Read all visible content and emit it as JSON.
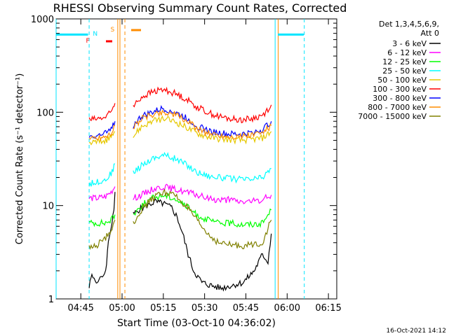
{
  "chart_data": {
    "type": "line",
    "title": "RHESSI Observing Summary Count Rates, Corrected",
    "xlabel": "Start Time (03-Oct-10 04:36:02)",
    "ylabel": "Corrected Count Rate (s⁻¹ detector⁻¹)",
    "x_unit": "minutes since 04:36:02",
    "xlim": [
      0,
      102
    ],
    "ylim": [
      1,
      1000
    ],
    "y_scale": "log",
    "grid": false,
    "x_ticks": [
      {
        "label": "04:45",
        "t": 8.97
      },
      {
        "label": "05:00",
        "t": 23.97
      },
      {
        "label": "05:15",
        "t": 38.97
      },
      {
        "label": "05:30",
        "t": 53.97
      },
      {
        "label": "05:45",
        "t": 68.97
      },
      {
        "label": "06:00",
        "t": 83.97
      },
      {
        "label": "06:15",
        "t": 98.97
      }
    ],
    "y_ticks": [
      {
        "label": "1",
        "v": 1
      },
      {
        "label": "10",
        "v": 10
      },
      {
        "label": "100",
        "v": 100
      },
      {
        "label": "1000",
        "v": 1000
      }
    ],
    "legend_header": [
      "Det 1,3,4,5,6,9,",
      "Att 0"
    ],
    "legend_position": "top-right outside",
    "series": [
      {
        "name": "3 - 6 keV",
        "color": "#000000",
        "points": [
          [
            12,
            1.4
          ],
          [
            13,
            1.8
          ],
          [
            15,
            1.5
          ],
          [
            16,
            1.6
          ],
          [
            18,
            2
          ],
          [
            19,
            4
          ],
          [
            20,
            6
          ],
          [
            21,
            9
          ],
          [
            21.4,
            14
          ]
        ],
        "points2": [
          [
            28,
            8
          ],
          [
            30,
            9
          ],
          [
            33,
            10
          ],
          [
            36,
            11
          ],
          [
            39,
            10.5
          ],
          [
            42,
            9.5
          ],
          [
            44,
            7.5
          ],
          [
            46,
            5
          ],
          [
            48,
            3
          ],
          [
            50,
            2
          ],
          [
            53,
            1.5
          ],
          [
            56,
            1.4
          ],
          [
            60,
            1.3
          ],
          [
            64,
            1.4
          ],
          [
            68,
            1.5
          ],
          [
            72,
            2
          ],
          [
            75,
            3
          ],
          [
            77,
            2.5
          ],
          [
            78.2,
            5
          ]
        ]
      },
      {
        "name": "6 - 12 keV",
        "color": "#ff00ff",
        "points": [
          [
            12,
            12
          ],
          [
            15,
            12
          ],
          [
            18,
            12.5
          ],
          [
            20,
            14
          ],
          [
            21.4,
            16
          ]
        ],
        "points2": [
          [
            28,
            12
          ],
          [
            31,
            13
          ],
          [
            35,
            15
          ],
          [
            39,
            16
          ],
          [
            43,
            15
          ],
          [
            47,
            14
          ],
          [
            51,
            13
          ],
          [
            55,
            12
          ],
          [
            59,
            11.5
          ],
          [
            63,
            11.5
          ],
          [
            67,
            11
          ],
          [
            71,
            11
          ],
          [
            75,
            11.5
          ],
          [
            78.2,
            13
          ]
        ]
      },
      {
        "name": "12 - 25 keV",
        "color": "#00ff00",
        "points": [
          [
            12,
            6.5
          ],
          [
            15,
            6.5
          ],
          [
            18,
            6.5
          ],
          [
            20,
            7
          ],
          [
            21.4,
            8
          ]
        ],
        "points2": [
          [
            28,
            8
          ],
          [
            31,
            10
          ],
          [
            35,
            12
          ],
          [
            39,
            13
          ],
          [
            43,
            12
          ],
          [
            47,
            10
          ],
          [
            51,
            8
          ],
          [
            55,
            7
          ],
          [
            59,
            6.5
          ],
          [
            63,
            6.5
          ],
          [
            67,
            6.3
          ],
          [
            71,
            6.3
          ],
          [
            75,
            6.5
          ],
          [
            78.2,
            9
          ]
        ]
      },
      {
        "name": "25 - 50 keV",
        "color": "#00ffff",
        "points": [
          [
            12,
            17
          ],
          [
            15,
            18
          ],
          [
            18,
            19
          ],
          [
            20,
            22
          ],
          [
            21.4,
            28
          ]
        ],
        "points2": [
          [
            28,
            22
          ],
          [
            31,
            27
          ],
          [
            35,
            32
          ],
          [
            39,
            35
          ],
          [
            43,
            32
          ],
          [
            47,
            28
          ],
          [
            51,
            23
          ],
          [
            55,
            21
          ],
          [
            59,
            20
          ],
          [
            63,
            19.5
          ],
          [
            67,
            19
          ],
          [
            71,
            19
          ],
          [
            75,
            20
          ],
          [
            78.2,
            25
          ]
        ]
      },
      {
        "name": "50 - 100 keV",
        "color": "#e6c800",
        "points": [
          [
            12,
            47
          ],
          [
            15,
            48
          ],
          [
            18,
            50
          ],
          [
            20,
            55
          ],
          [
            21.4,
            62
          ]
        ],
        "points2": [
          [
            28,
            55
          ],
          [
            31,
            70
          ],
          [
            35,
            80
          ],
          [
            39,
            85
          ],
          [
            43,
            80
          ],
          [
            47,
            70
          ],
          [
            51,
            60
          ],
          [
            55,
            55
          ],
          [
            59,
            52
          ],
          [
            63,
            51
          ],
          [
            67,
            50
          ],
          [
            71,
            51
          ],
          [
            75,
            53
          ],
          [
            78.2,
            62
          ]
        ]
      },
      {
        "name": "100 - 300 keV",
        "color": "#ff0000",
        "points": [
          [
            12,
            83
          ],
          [
            15,
            85
          ],
          [
            18,
            88
          ],
          [
            20,
            100
          ],
          [
            21.4,
            125
          ]
        ],
        "points2": [
          [
            28,
            115
          ],
          [
            31,
            145
          ],
          [
            35,
            165
          ],
          [
            39,
            175
          ],
          [
            43,
            160
          ],
          [
            47,
            140
          ],
          [
            51,
            115
          ],
          [
            55,
            100
          ],
          [
            59,
            90
          ],
          [
            63,
            85
          ],
          [
            67,
            83
          ],
          [
            71,
            85
          ],
          [
            75,
            92
          ],
          [
            78.2,
            120
          ]
        ]
      },
      {
        "name": "300 - 800 keV",
        "color": "#0000ff",
        "points": [
          [
            12,
            56
          ],
          [
            15,
            57
          ],
          [
            18,
            59
          ],
          [
            20,
            65
          ],
          [
            21.4,
            80
          ]
        ],
        "points2": [
          [
            28,
            72
          ],
          [
            31,
            90
          ],
          [
            35,
            100
          ],
          [
            39,
            110
          ],
          [
            43,
            100
          ],
          [
            47,
            88
          ],
          [
            51,
            72
          ],
          [
            55,
            64
          ],
          [
            59,
            60
          ],
          [
            63,
            58
          ],
          [
            67,
            58
          ],
          [
            71,
            60
          ],
          [
            75,
            65
          ],
          [
            78.2,
            80
          ]
        ]
      },
      {
        "name": "800 - 7000 keV",
        "color": "#ff8c00",
        "points": [
          [
            12,
            52
          ],
          [
            15,
            53
          ],
          [
            18,
            55
          ],
          [
            20,
            60
          ],
          [
            21.4,
            72
          ]
        ],
        "points2": [
          [
            28,
            68
          ],
          [
            31,
            85
          ],
          [
            35,
            95
          ],
          [
            39,
            100
          ],
          [
            43,
            95
          ],
          [
            47,
            82
          ],
          [
            51,
            68
          ],
          [
            55,
            60
          ],
          [
            59,
            57
          ],
          [
            63,
            55
          ],
          [
            67,
            55
          ],
          [
            71,
            57
          ],
          [
            75,
            60
          ],
          [
            78.2,
            72
          ]
        ]
      },
      {
        "name": "7000 - 15000 keV",
        "color": "#808000",
        "points": [
          [
            12,
            3.5
          ],
          [
            15,
            3.8
          ],
          [
            18,
            4.5
          ],
          [
            20,
            5.5
          ],
          [
            21.4,
            7
          ]
        ],
        "points2": [
          [
            28,
            6.5
          ],
          [
            31,
            9
          ],
          [
            35,
            12
          ],
          [
            39,
            14
          ],
          [
            43,
            13
          ],
          [
            47,
            10
          ],
          [
            51,
            7
          ],
          [
            55,
            5
          ],
          [
            59,
            4
          ],
          [
            63,
            3.8
          ],
          [
            67,
            3.7
          ],
          [
            71,
            3.8
          ],
          [
            75,
            4
          ],
          [
            78.2,
            7
          ]
        ]
      }
    ],
    "annotations": {
      "saa_bars": {
        "label": "",
        "color": "#00e5ff",
        "value": 680,
        "spans": [
          [
            0,
            11.6
          ],
          [
            80.6,
            90
          ]
        ]
      },
      "flags": [
        {
          "label": "N",
          "color": "#00e5ff",
          "t": 14.2
        },
        {
          "label": "F",
          "color": "#ff0000",
          "t": 11.5
        },
        {
          "label": "S",
          "color": "#ff8c00",
          "t": 20.5
        }
      ],
      "cyan_lines_solid": [
        0,
        79.6
      ],
      "cyan_lines_dashed": [
        12.0,
        90.2
      ],
      "orange_lines_solid": [
        22.4,
        23.2,
        80.7
      ],
      "orange_lines_dashed": [
        25.0
      ]
    },
    "timestamp": "16-Oct-2021 14:12"
  }
}
